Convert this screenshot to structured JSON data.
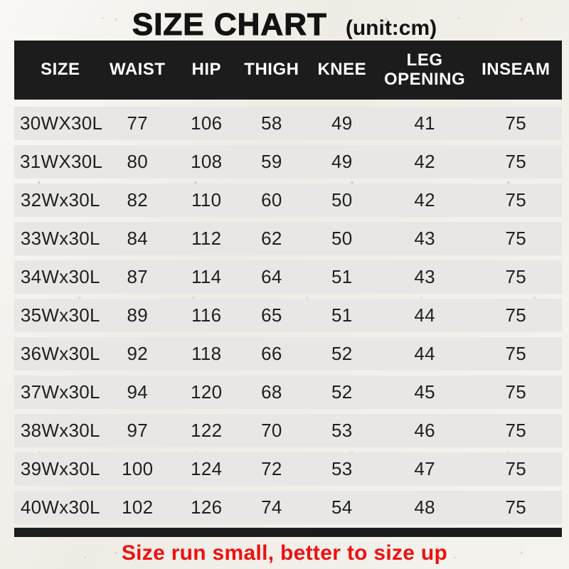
{
  "title": {
    "main": "SIZE CHART",
    "unit": "(unit:cm)"
  },
  "footer": {
    "note": "Size run small, better to size up"
  },
  "colors": {
    "header_bg": "#1c1c1c",
    "header_text": "#ffffff",
    "row_bg": "#e8e7e5",
    "row_text": "#1f1f1f",
    "note_red": "#ee1111",
    "paper_bg": "#f3f1ec"
  },
  "chart_data": {
    "type": "table",
    "title": "SIZE CHART",
    "unit": "cm",
    "columns": [
      "SIZE",
      "WAIST",
      "HIP",
      "THIGH",
      "KNEE",
      "LEG OPENING",
      "INSEAM"
    ],
    "rows": [
      {
        "size": "30WX30L",
        "waist": "77",
        "hip": "106",
        "thigh": "58",
        "knee": "49",
        "leg_opening": "41",
        "inseam": "75"
      },
      {
        "size": "31WX30L",
        "waist": "80",
        "hip": "108",
        "thigh": "59",
        "knee": "49",
        "leg_opening": "42",
        "inseam": "75"
      },
      {
        "size": "32Wx30L",
        "waist": "82",
        "hip": "110",
        "thigh": "60",
        "knee": "50",
        "leg_opening": "42",
        "inseam": "75"
      },
      {
        "size": "33Wx30L",
        "waist": "84",
        "hip": "112",
        "thigh": "62",
        "knee": "50",
        "leg_opening": "43",
        "inseam": "75"
      },
      {
        "size": "34Wx30L",
        "waist": "87",
        "hip": "114",
        "thigh": "64",
        "knee": "51",
        "leg_opening": "43",
        "inseam": "75"
      },
      {
        "size": "35Wx30L",
        "waist": "89",
        "hip": "116",
        "thigh": "65",
        "knee": "51",
        "leg_opening": "44",
        "inseam": "75"
      },
      {
        "size": "36Wx30L",
        "waist": "92",
        "hip": "118",
        "thigh": "66",
        "knee": "52",
        "leg_opening": "44",
        "inseam": "75"
      },
      {
        "size": "37Wx30L",
        "waist": "94",
        "hip": "120",
        "thigh": "68",
        "knee": "52",
        "leg_opening": "45",
        "inseam": "75"
      },
      {
        "size": "38Wx30L",
        "waist": "97",
        "hip": "122",
        "thigh": "70",
        "knee": "53",
        "leg_opening": "46",
        "inseam": "75"
      },
      {
        "size": "39Wx30L",
        "waist": "100",
        "hip": "124",
        "thigh": "72",
        "knee": "53",
        "leg_opening": "47",
        "inseam": "75"
      },
      {
        "size": "40Wx30L",
        "waist": "102",
        "hip": "126",
        "thigh": "74",
        "knee": "54",
        "leg_opening": "48",
        "inseam": "75"
      }
    ]
  }
}
